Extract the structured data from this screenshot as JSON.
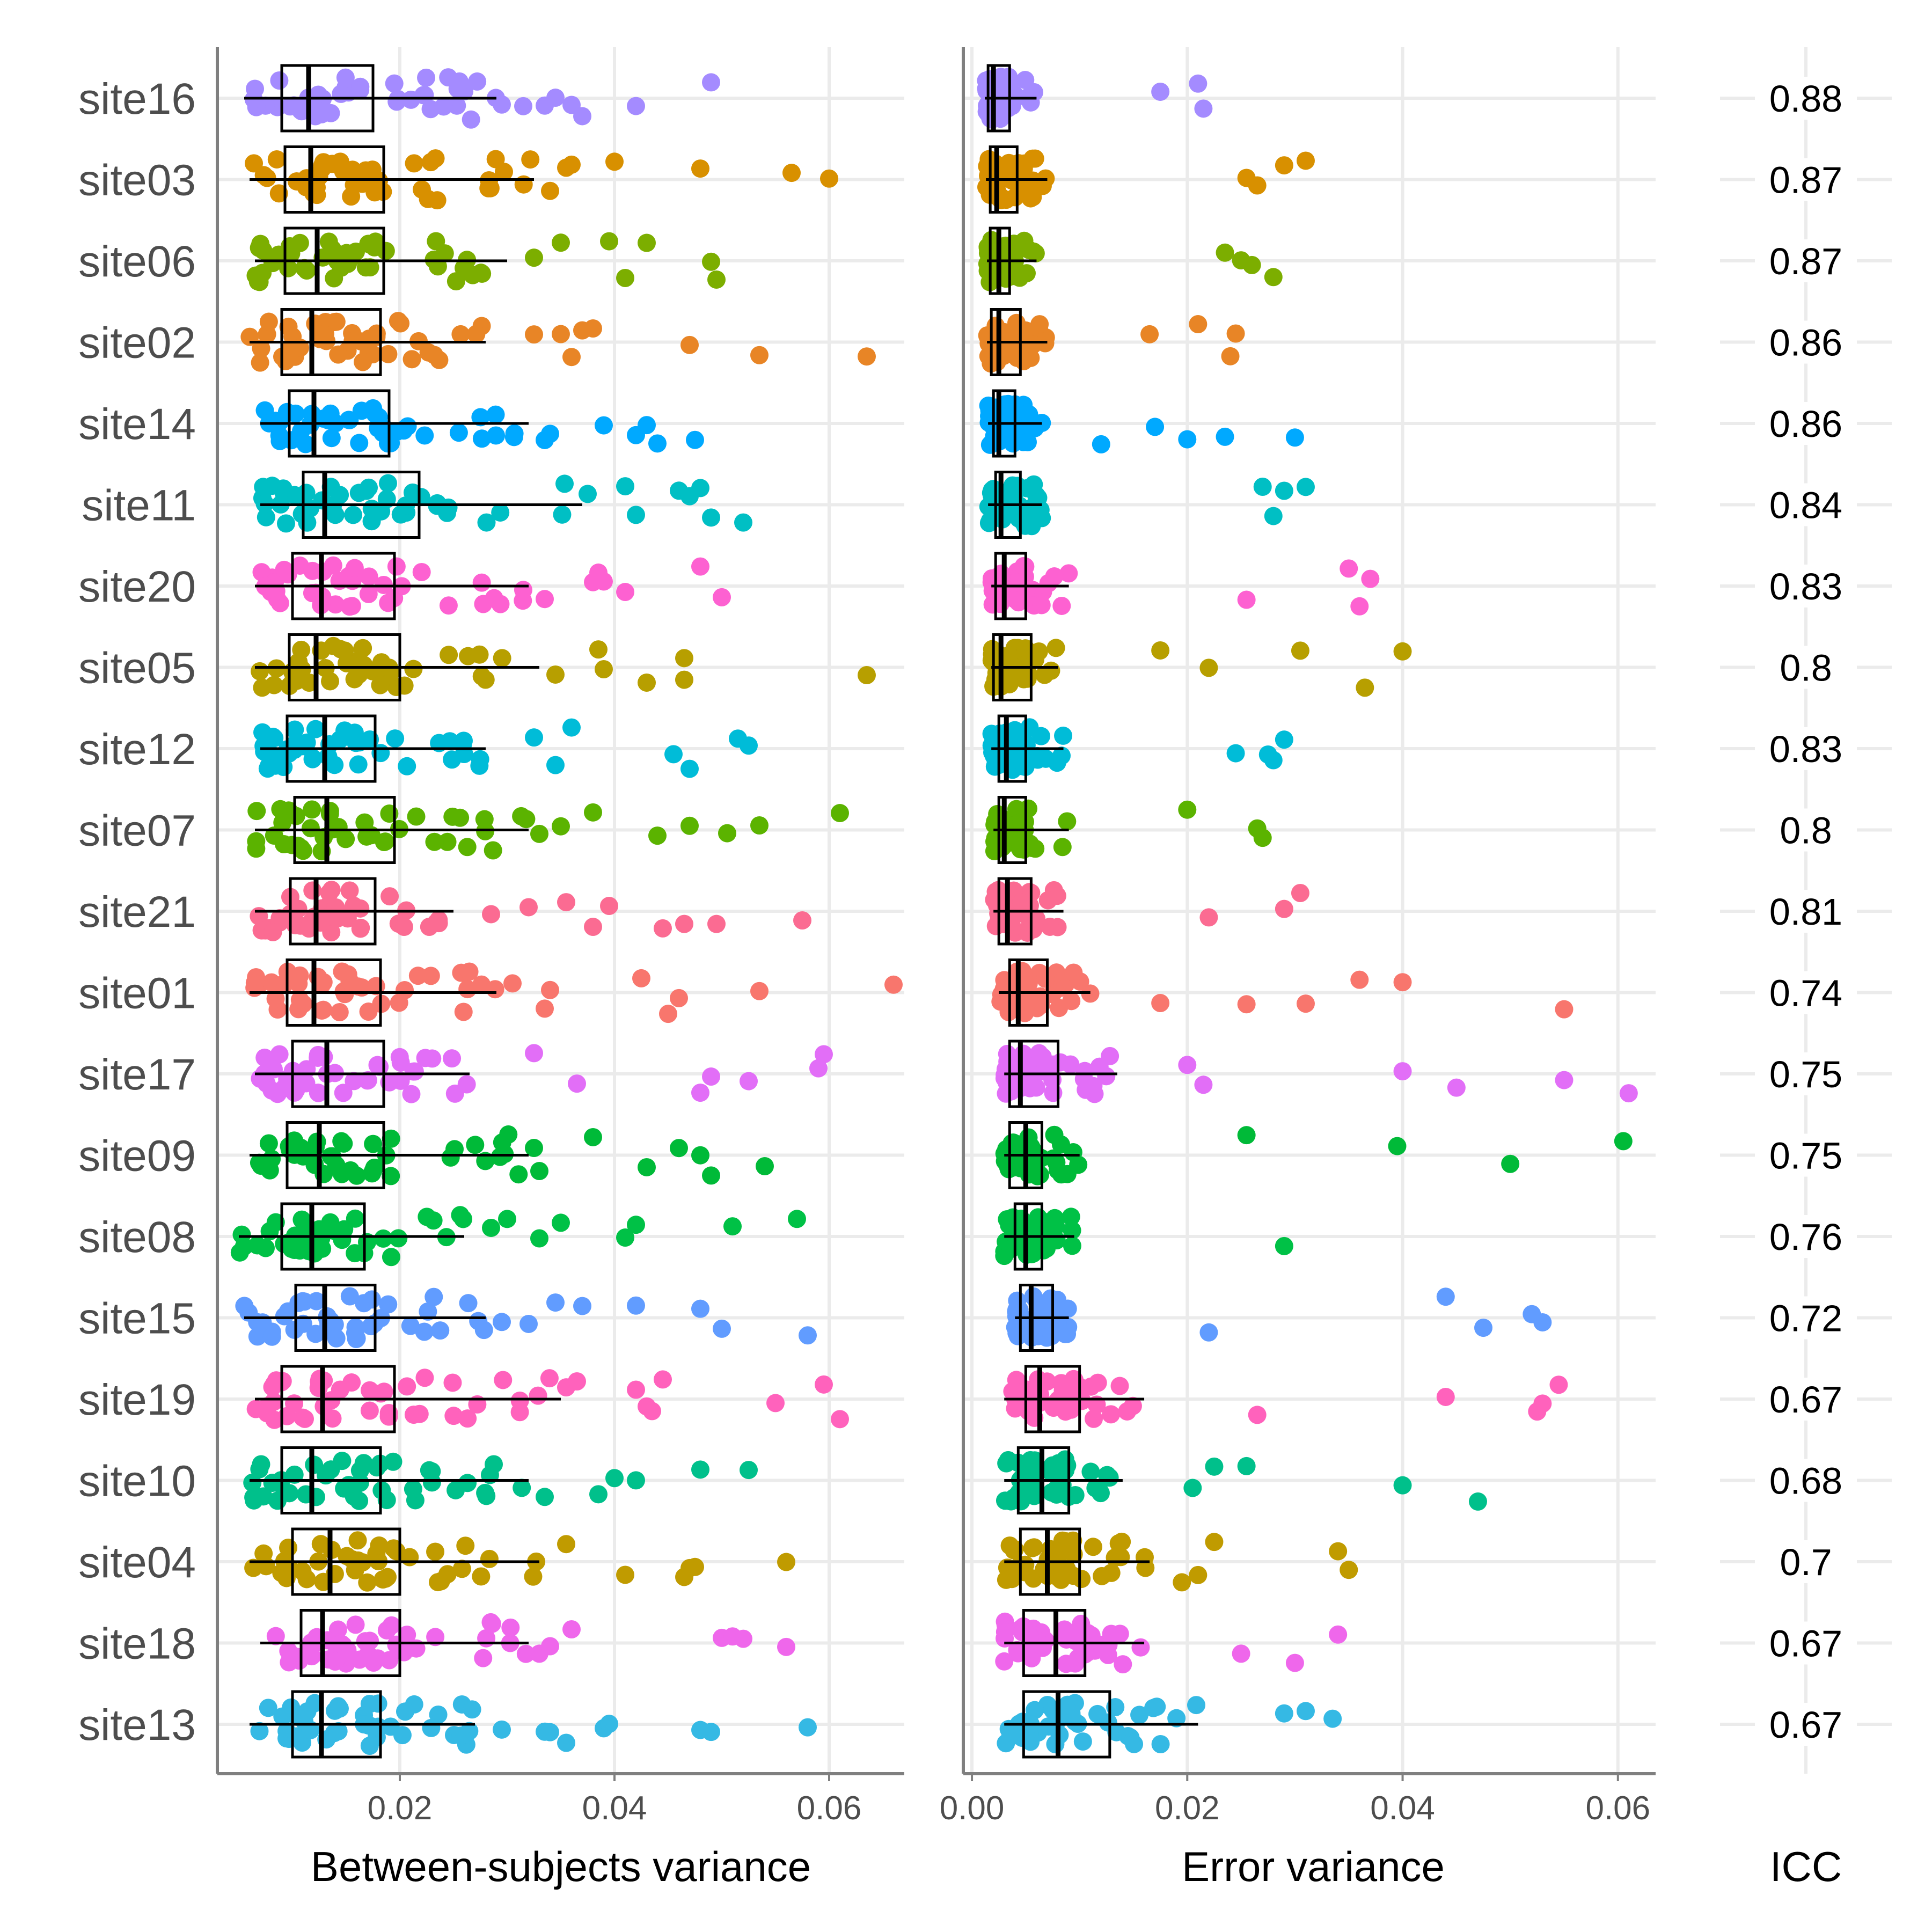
{
  "chart_data": {
    "type": "box-jitter",
    "sites": [
      "site16",
      "site03",
      "site06",
      "site02",
      "site14",
      "site11",
      "site20",
      "site05",
      "site12",
      "site07",
      "site21",
      "site01",
      "site17",
      "site09",
      "site08",
      "site15",
      "site19",
      "site10",
      "site04",
      "site18",
      "site13"
    ],
    "colors": [
      "#a48bff",
      "#d89000",
      "#7cae00",
      "#e88526",
      "#00a9ff",
      "#00bfc4",
      "#fd61d1",
      "#b79f00",
      "#00bcd8",
      "#5bb300",
      "#fb6b92",
      "#f8766d",
      "#e26ef7",
      "#00ba38",
      "#00c146",
      "#619cff",
      "#ff62bc",
      "#00c08b",
      "#c09b00",
      "#ef67eb",
      "#35b9e4"
    ],
    "icc": [
      "0.88",
      "0.87",
      "0.87",
      "0.86",
      "0.86",
      "0.84",
      "0.83",
      "0.8",
      "0.83",
      "0.8",
      "0.81",
      "0.74",
      "0.75",
      "0.75",
      "0.76",
      "0.72",
      "0.67",
      "0.68",
      "0.7",
      "0.67",
      "0.67"
    ],
    "panels": [
      {
        "id": "between",
        "xlabel": "Between-subjects variance",
        "xlim": [
          0.003,
          0.067
        ],
        "ticks": [
          0.02,
          0.04,
          0.06
        ],
        "tick_labels": [
          "0.02",
          "0.04",
          "0.06"
        ],
        "boxes": [
          {
            "whisker_lo": 0.0055,
            "q1": 0.009,
            "median": 0.0115,
            "q3": 0.0175,
            "whisker_hi": 0.029
          },
          {
            "whisker_lo": 0.006,
            "q1": 0.0093,
            "median": 0.0117,
            "q3": 0.0185,
            "whisker_hi": 0.0325
          },
          {
            "whisker_lo": 0.0065,
            "q1": 0.0093,
            "median": 0.0123,
            "q3": 0.0185,
            "whisker_hi": 0.03
          },
          {
            "whisker_lo": 0.006,
            "q1": 0.009,
            "median": 0.0118,
            "q3": 0.0182,
            "whisker_hi": 0.028
          },
          {
            "whisker_lo": 0.007,
            "q1": 0.0097,
            "median": 0.012,
            "q3": 0.019,
            "whisker_hi": 0.032
          },
          {
            "whisker_lo": 0.007,
            "q1": 0.011,
            "median": 0.013,
            "q3": 0.0218,
            "whisker_hi": 0.037
          },
          {
            "whisker_lo": 0.0065,
            "q1": 0.01,
            "median": 0.0127,
            "q3": 0.0195,
            "whisker_hi": 0.032
          },
          {
            "whisker_lo": 0.0065,
            "q1": 0.0097,
            "median": 0.0122,
            "q3": 0.02,
            "whisker_hi": 0.033
          },
          {
            "whisker_lo": 0.007,
            "q1": 0.0095,
            "median": 0.013,
            "q3": 0.0177,
            "whisker_hi": 0.028
          },
          {
            "whisker_lo": 0.0065,
            "q1": 0.0102,
            "median": 0.0132,
            "q3": 0.0195,
            "whisker_hi": 0.032
          },
          {
            "whisker_lo": 0.0065,
            "q1": 0.0098,
            "median": 0.0122,
            "q3": 0.0177,
            "whisker_hi": 0.025
          },
          {
            "whisker_lo": 0.006,
            "q1": 0.0095,
            "median": 0.012,
            "q3": 0.0182,
            "whisker_hi": 0.029
          },
          {
            "whisker_lo": 0.0065,
            "q1": 0.01,
            "median": 0.0132,
            "q3": 0.0185,
            "whisker_hi": 0.0265
          },
          {
            "whisker_lo": 0.006,
            "q1": 0.0095,
            "median": 0.0125,
            "q3": 0.0185,
            "whisker_hi": 0.032
          },
          {
            "whisker_lo": 0.005,
            "q1": 0.009,
            "median": 0.0118,
            "q3": 0.0167,
            "whisker_hi": 0.026
          },
          {
            "whisker_lo": 0.0055,
            "q1": 0.0103,
            "median": 0.013,
            "q3": 0.0177,
            "whisker_hi": 0.028
          },
          {
            "whisker_lo": 0.0065,
            "q1": 0.009,
            "median": 0.0128,
            "q3": 0.0195,
            "whisker_hi": 0.035
          },
          {
            "whisker_lo": 0.006,
            "q1": 0.009,
            "median": 0.0118,
            "q3": 0.0182,
            "whisker_hi": 0.032
          },
          {
            "whisker_lo": 0.006,
            "q1": 0.01,
            "median": 0.0135,
            "q3": 0.02,
            "whisker_hi": 0.033
          },
          {
            "whisker_lo": 0.007,
            "q1": 0.0108,
            "median": 0.0128,
            "q3": 0.02,
            "whisker_hi": 0.032
          },
          {
            "whisker_lo": 0.006,
            "q1": 0.01,
            "median": 0.0127,
            "q3": 0.0182,
            "whisker_hi": 0.027
          }
        ],
        "outliers": [
          [
            0.0295,
            0.0315,
            0.0335,
            0.0345,
            0.036,
            0.037,
            0.042,
            0.049
          ],
          [
            0.034,
            0.0355,
            0.036,
            0.04,
            0.048,
            0.0565,
            0.06
          ],
          [
            0.0325,
            0.035,
            0.0395,
            0.041,
            0.043,
            0.049,
            0.0495
          ],
          [
            0.0325,
            0.035,
            0.036,
            0.037,
            0.038,
            0.047,
            0.0535,
            0.0635
          ],
          [
            0.0335,
            0.034,
            0.039,
            0.042,
            0.043,
            0.044,
            0.0475
          ],
          [
            0.0375,
            0.041,
            0.042,
            0.046,
            0.047,
            0.048,
            0.049,
            0.052
          ],
          [
            0.0335,
            0.038,
            0.0385,
            0.039,
            0.041,
            0.048,
            0.05
          ],
          [
            0.0345,
            0.0385,
            0.039,
            0.043,
            0.0465,
            0.0465,
            0.0635
          ],
          [
            0.0325,
            0.0345,
            0.036,
            0.0455,
            0.047,
            0.0515,
            0.0525
          ],
          [
            0.033,
            0.035,
            0.038,
            0.044,
            0.047,
            0.0505,
            0.0535,
            0.061
          ],
          [
            0.0285,
            0.032,
            0.0355,
            0.038,
            0.0395,
            0.0445,
            0.0465,
            0.0495,
            0.0575
          ],
          [
            0.0305,
            0.0335,
            0.034,
            0.0425,
            0.045,
            0.046,
            0.0535,
            0.066
          ],
          [
            0.0325,
            0.0365,
            0.048,
            0.049,
            0.0525,
            0.059,
            0.0595
          ],
          [
            0.0325,
            0.033,
            0.038,
            0.043,
            0.046,
            0.048,
            0.049,
            0.054
          ],
          [
            0.0285,
            0.03,
            0.033,
            0.035,
            0.041,
            0.042,
            0.051,
            0.057
          ],
          [
            0.0295,
            0.032,
            0.0345,
            0.037,
            0.042,
            0.048,
            0.05,
            0.058
          ],
          [
            0.0355,
            0.0365,
            0.042,
            0.043,
            0.0435,
            0.0445,
            0.055,
            0.0595,
            0.061
          ],
          [
            0.0335,
            0.0385,
            0.04,
            0.042,
            0.048,
            0.0525
          ],
          [
            0.0355,
            0.041,
            0.0465,
            0.047,
            0.0475,
            0.056
          ],
          [
            0.033,
            0.034,
            0.036,
            0.05,
            0.051,
            0.052,
            0.056
          ],
          [
            0.0295,
            0.0335,
            0.034,
            0.0355,
            0.039,
            0.0395,
            0.048,
            0.049,
            0.058
          ]
        ]
      },
      {
        "id": "error",
        "xlabel": "Error variance",
        "xlim": [
          -0.0008,
          0.0635
        ],
        "ticks": [
          0.0,
          0.02,
          0.04,
          0.06
        ],
        "tick_labels": [
          "0.00",
          "0.02",
          "0.04",
          "0.06"
        ],
        "boxes": [
          {
            "whisker_lo": 0.0012,
            "q1": 0.0015,
            "median": 0.002,
            "q3": 0.0035,
            "whisker_hi": 0.006
          },
          {
            "whisker_lo": 0.0013,
            "q1": 0.0017,
            "median": 0.0023,
            "q3": 0.0042,
            "whisker_hi": 0.007
          },
          {
            "whisker_lo": 0.0014,
            "q1": 0.0017,
            "median": 0.0025,
            "q3": 0.0035,
            "whisker_hi": 0.006
          },
          {
            "whisker_lo": 0.0014,
            "q1": 0.0018,
            "median": 0.0025,
            "q3": 0.0045,
            "whisker_hi": 0.007
          },
          {
            "whisker_lo": 0.0015,
            "q1": 0.002,
            "median": 0.0025,
            "q3": 0.004,
            "whisker_hi": 0.0065
          },
          {
            "whisker_lo": 0.0015,
            "q1": 0.0022,
            "median": 0.0027,
            "q3": 0.0045,
            "whisker_hi": 0.0065
          },
          {
            "whisker_lo": 0.0018,
            "q1": 0.0022,
            "median": 0.003,
            "q3": 0.005,
            "whisker_hi": 0.009
          },
          {
            "whisker_lo": 0.0018,
            "q1": 0.002,
            "median": 0.0027,
            "q3": 0.0055,
            "whisker_hi": 0.008
          },
          {
            "whisker_lo": 0.0018,
            "q1": 0.0025,
            "median": 0.0032,
            "q3": 0.005,
            "whisker_hi": 0.0085
          },
          {
            "whisker_lo": 0.002,
            "q1": 0.0025,
            "median": 0.003,
            "q3": 0.005,
            "whisker_hi": 0.009
          },
          {
            "whisker_lo": 0.002,
            "q1": 0.0025,
            "median": 0.0033,
            "q3": 0.0055,
            "whisker_hi": 0.0085
          },
          {
            "whisker_lo": 0.0025,
            "q1": 0.0035,
            "median": 0.0043,
            "q3": 0.007,
            "whisker_hi": 0.011
          },
          {
            "whisker_lo": 0.003,
            "q1": 0.0035,
            "median": 0.0045,
            "q3": 0.008,
            "whisker_hi": 0.0135
          },
          {
            "whisker_lo": 0.003,
            "q1": 0.0035,
            "median": 0.005,
            "q3": 0.0065,
            "whisker_hi": 0.01
          },
          {
            "whisker_lo": 0.003,
            "q1": 0.004,
            "median": 0.005,
            "q3": 0.0065,
            "whisker_hi": 0.0095
          },
          {
            "whisker_lo": 0.004,
            "q1": 0.0045,
            "median": 0.0055,
            "q3": 0.0075,
            "whisker_hi": 0.009
          },
          {
            "whisker_lo": 0.003,
            "q1": 0.005,
            "median": 0.0063,
            "q3": 0.01,
            "whisker_hi": 0.016
          },
          {
            "whisker_lo": 0.003,
            "q1": 0.0043,
            "median": 0.0065,
            "q3": 0.009,
            "whisker_hi": 0.014
          },
          {
            "whisker_lo": 0.003,
            "q1": 0.0045,
            "median": 0.007,
            "q3": 0.01,
            "whisker_hi": 0.0165
          },
          {
            "whisker_lo": 0.003,
            "q1": 0.0048,
            "median": 0.0078,
            "q3": 0.0105,
            "whisker_hi": 0.016
          },
          {
            "whisker_lo": 0.003,
            "q1": 0.0048,
            "median": 0.008,
            "q3": 0.0128,
            "whisker_hi": 0.021
          }
        ],
        "outliers": [
          [
            0.0175,
            0.021,
            0.0215
          ],
          [
            0.0255,
            0.0265,
            0.029,
            0.031
          ],
          [
            0.0235,
            0.025,
            0.026,
            0.028
          ],
          [
            0.0165,
            0.021,
            0.024,
            0.0245
          ],
          [
            0.012,
            0.017,
            0.02,
            0.0235,
            0.03
          ],
          [
            0.027,
            0.028,
            0.029,
            0.031
          ],
          [
            0.0255,
            0.035,
            0.036,
            0.037
          ],
          [
            0.0175,
            0.022,
            0.0305,
            0.0365,
            0.04
          ],
          [
            0.0245,
            0.0275,
            0.028,
            0.029
          ],
          [
            0.02,
            0.0265,
            0.027
          ],
          [
            0.022,
            0.029,
            0.0305
          ],
          [
            0.0175,
            0.0255,
            0.031,
            0.036,
            0.04,
            0.055
          ],
          [
            0.02,
            0.0215,
            0.04,
            0.045,
            0.055,
            0.061
          ],
          [
            0.0255,
            0.0395,
            0.05,
            0.0605
          ],
          [
            0.029
          ],
          [
            0.022,
            0.044,
            0.0475,
            0.052,
            0.053
          ],
          [
            0.0265,
            0.044,
            0.0525,
            0.053,
            0.0545
          ],
          [
            0.0205,
            0.0225,
            0.0255,
            0.04,
            0.047
          ],
          [
            0.0195,
            0.021,
            0.0225,
            0.034,
            0.035
          ],
          [
            0.025,
            0.03,
            0.034
          ],
          [
            0.029,
            0.031,
            0.0335
          ]
        ]
      }
    ],
    "icc_label": "ICC"
  }
}
